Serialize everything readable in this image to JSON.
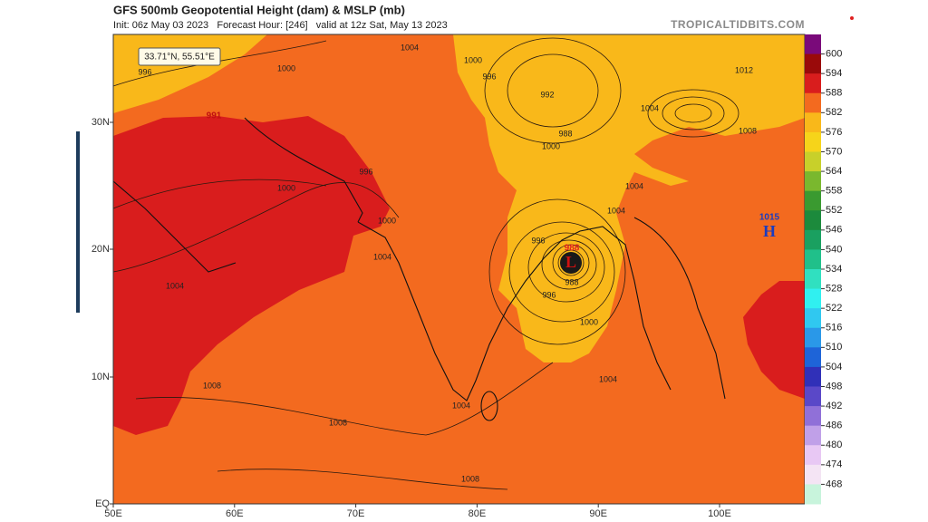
{
  "header": {
    "title": "GFS 500mb Geopotential Height (dam) & MSLP (mb)",
    "subtitle": "Init: 06z May 03 2023   Forecast Hour: [246]   valid at 12z Sat, May 13 2023",
    "source": "TROPICALTIDBITS.COM"
  },
  "cursor": "33.71°N, 55.51°E",
  "axes": {
    "lat_labels": [
      "30N",
      "20N",
      "10N",
      "EQ"
    ],
    "lon_labels": [
      "50E",
      "60E",
      "70E",
      "80E",
      "90E",
      "100E"
    ]
  },
  "colorbar": {
    "labels": [
      600,
      594,
      588,
      582,
      576,
      570,
      564,
      558,
      552,
      546,
      540,
      534,
      528,
      522,
      516,
      510,
      504,
      498,
      492,
      486,
      480,
      474,
      468
    ],
    "colors": [
      "#7a0a7a",
      "#9a0a0a",
      "#d91d1d",
      "#f36a1f",
      "#f9b81a",
      "#f6d41a",
      "#c8d02a",
      "#7ab82e",
      "#3a9a30",
      "#1c8a3c",
      "#1aa060",
      "#20c08a",
      "#30e0c0",
      "#30f0f0",
      "#30c8f0",
      "#2a98e8",
      "#1e64d8",
      "#3030b8",
      "#5a48c8",
      "#9070d8",
      "#c0a0e8",
      "#e8c8f4",
      "#f4e4f4",
      "#c8f4dc"
    ]
  },
  "map_labels": {
    "low": "L",
    "low_pressure": 988,
    "high": "H",
    "high_pressure": 1015,
    "west_low": 991,
    "isobars": [
      996,
      1000,
      1000,
      1004,
      996,
      1000,
      1000,
      1004,
      1004,
      996,
      996,
      988,
      1000,
      1004,
      1004,
      1008,
      1008,
      1008,
      992,
      988,
      1000,
      1004,
      1008,
      1012,
      1004,
      1004,
      996
    ]
  }
}
